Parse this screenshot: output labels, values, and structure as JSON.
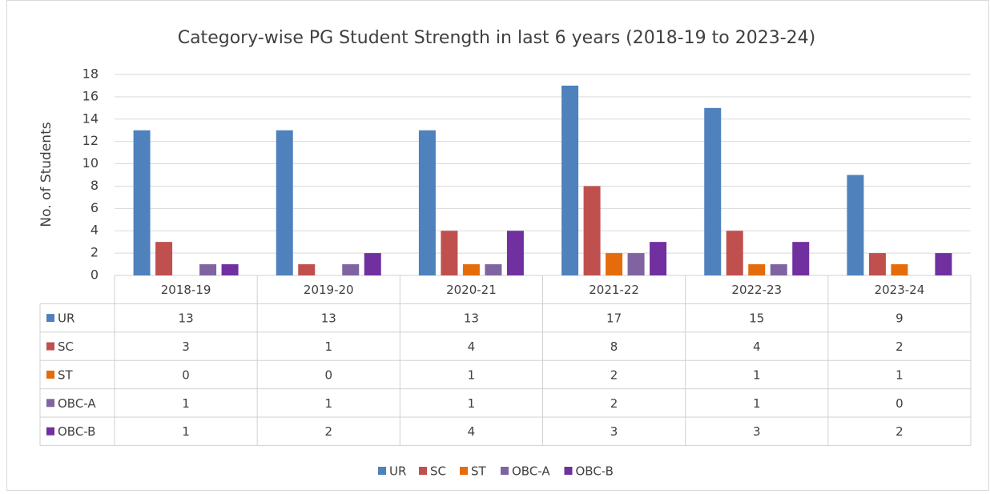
{
  "chart_data": {
    "type": "bar",
    "title": "Category-wise PG Student Strength in last 6 years (2018-19 to 2023-24)",
    "y_label": "No. of Students",
    "categories": [
      "2018-19",
      "2019-20",
      "2020-21",
      "2021-22",
      "2022-23",
      "2023-24"
    ],
    "series": [
      {
        "name": "UR",
        "color": "#4f81bd",
        "values": [
          13,
          13,
          13,
          17,
          15,
          9
        ]
      },
      {
        "name": "SC",
        "color": "#c0504d",
        "values": [
          3,
          1,
          4,
          8,
          4,
          2
        ]
      },
      {
        "name": "ST",
        "color": "#e46c0a",
        "values": [
          0,
          0,
          1,
          2,
          1,
          1
        ]
      },
      {
        "name": "OBC-A",
        "color": "#8064a2",
        "values": [
          1,
          1,
          1,
          2,
          1,
          0
        ]
      },
      {
        "name": "OBC-B",
        "color": "#7030a0",
        "values": [
          1,
          2,
          4,
          3,
          3,
          2
        ]
      }
    ],
    "ylim": [
      0,
      18
    ],
    "yticks": [
      0,
      2,
      4,
      6,
      8,
      10,
      12,
      14,
      16,
      18
    ],
    "grid": true,
    "legend": "bottom"
  }
}
